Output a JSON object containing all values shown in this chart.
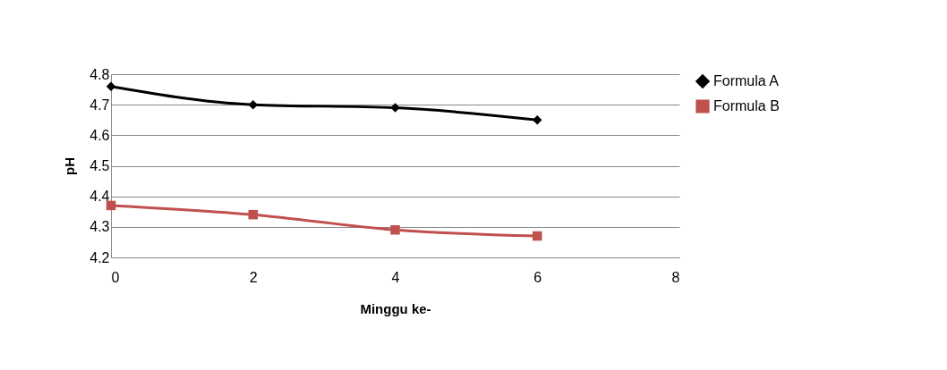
{
  "chart_data": {
    "type": "line",
    "xlabel": "Minggu ke-",
    "ylabel": "pH",
    "x": [
      0,
      2,
      4,
      6
    ],
    "series": [
      {
        "name": "Formula A",
        "color": "#000000",
        "marker": "diamond",
        "values": [
          4.76,
          4.7,
          4.69,
          4.65
        ]
      },
      {
        "name": "Formula B",
        "color": "#c0504d",
        "marker": "square",
        "values": [
          4.37,
          4.34,
          4.29,
          4.27
        ]
      }
    ],
    "xlim": [
      0,
      8
    ],
    "xticks": [
      0,
      2,
      4,
      6,
      8
    ],
    "ylim": [
      4.2,
      4.8
    ],
    "yticks": [
      4.2,
      4.3,
      4.4,
      4.5,
      4.6,
      4.7,
      4.8
    ],
    "grid": "y",
    "legend": "right",
    "line_style": "solid"
  }
}
